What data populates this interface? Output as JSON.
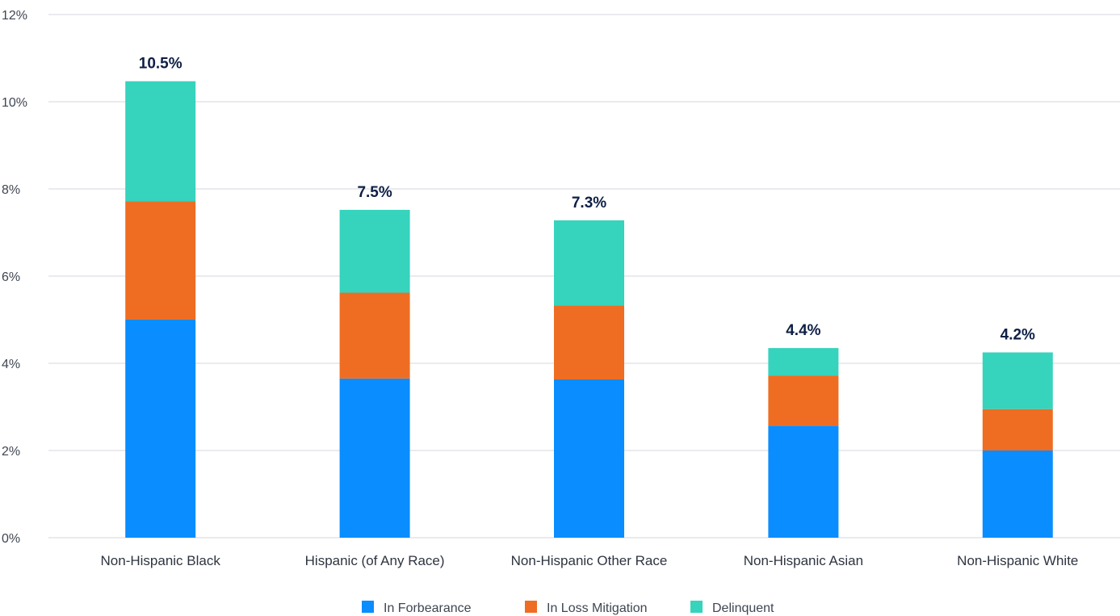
{
  "chart_data": {
    "type": "bar",
    "stacked": true,
    "title": "",
    "xlabel": "",
    "ylabel": "",
    "ylim": [
      0,
      12
    ],
    "y_ticks": [
      "0%",
      "2%",
      "4%",
      "6%",
      "8%",
      "10%",
      "12%"
    ],
    "y_tick_values": [
      0,
      2,
      4,
      6,
      8,
      10,
      12
    ],
    "grid": true,
    "legend_position": "bottom",
    "categories": [
      "Non-Hispanic Black",
      "Hispanic (of Any Race)",
      "Non-Hispanic Other Race",
      "Non-Hispanic Asian",
      "Non-Hispanic White"
    ],
    "series": [
      {
        "name": "In Forbearance",
        "color": "#0a8dff",
        "values": [
          5.0,
          3.65,
          3.63,
          2.57,
          2.0
        ]
      },
      {
        "name": "In Loss Mitigation",
        "color": "#ee6d22",
        "values": [
          2.72,
          1.97,
          1.7,
          1.15,
          0.95
        ]
      },
      {
        "name": "Delinquent",
        "color": "#36d3bd",
        "values": [
          2.75,
          1.9,
          1.95,
          0.63,
          1.3
        ]
      }
    ],
    "totals": [
      "10.5%",
      "7.5%",
      "7.3%",
      "4.4%",
      "4.2%"
    ]
  }
}
